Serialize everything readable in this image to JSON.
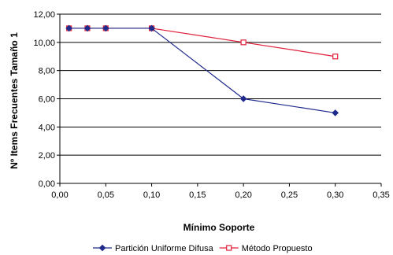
{
  "chart_data": {
    "type": "line",
    "title": "",
    "xlabel": "Mínimo Soporte",
    "ylabel": "Nº Items Frecuentes Tamaño 1",
    "xlim": [
      0,
      0.35
    ],
    "ylim": [
      0,
      12
    ],
    "x_ticks": [
      "0,00",
      "0,05",
      "0,10",
      "0,15",
      "0,20",
      "0,25",
      "0,30",
      "0,35"
    ],
    "y_ticks": [
      "0,00",
      "2,00",
      "4,00",
      "6,00",
      "8,00",
      "10,00",
      "12,00"
    ],
    "grid": "horizontal",
    "legend_position": "bottom",
    "series": [
      {
        "name": "Partición Uniforme Difusa",
        "color": "#1f2a8c",
        "marker": "diamond",
        "x": [
          0.01,
          0.03,
          0.05,
          0.1,
          0.2,
          0.3
        ],
        "y": [
          11,
          11,
          11,
          11,
          6,
          5
        ]
      },
      {
        "name": "Método Propuesto",
        "color": "#e0203a",
        "marker": "square",
        "x": [
          0.01,
          0.03,
          0.05,
          0.1,
          0.2,
          0.3
        ],
        "y": [
          11,
          11,
          11,
          11,
          10,
          9
        ]
      }
    ]
  }
}
